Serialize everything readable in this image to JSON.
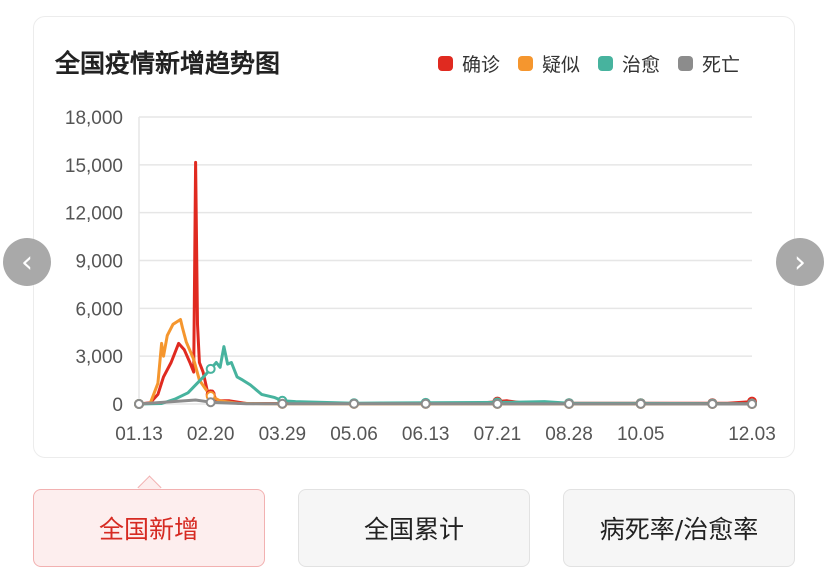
{
  "chart_data": {
    "type": "line",
    "title": "全国疫情新增趋势图",
    "legend_position": "top-right",
    "grid": true,
    "ylim": [
      0,
      18000
    ],
    "yticks": [
      "0",
      "3,000",
      "6,000",
      "9,000",
      "12,000",
      "15,000",
      "18,000"
    ],
    "xticks": [
      "01.13",
      "02.20",
      "03.29",
      "05.06",
      "06.13",
      "07.21",
      "08.28",
      "10.05",
      "12.03"
    ],
    "series": [
      {
        "name": "确诊",
        "color": "#e02a20",
        "points": [
          [
            "01.13",
            0
          ],
          [
            "01.19",
            80
          ],
          [
            "01.23",
            600
          ],
          [
            "01.26",
            1700
          ],
          [
            "01.30",
            2600
          ],
          [
            "02.03",
            3800
          ],
          [
            "02.06",
            3400
          ],
          [
            "02.09",
            2600
          ],
          [
            "02.11",
            2000
          ],
          [
            "02.12",
            15152
          ],
          [
            "02.13",
            5000
          ],
          [
            "02.14",
            2600
          ],
          [
            "02.16",
            2000
          ],
          [
            "02.19",
            400
          ],
          [
            "02.21",
            800
          ],
          [
            "02.23",
            200
          ],
          [
            "03.01",
            200
          ],
          [
            "03.10",
            30
          ],
          [
            "07.10",
            30
          ],
          [
            "07.26",
            200
          ],
          [
            "08.05",
            50
          ],
          [
            "11.20",
            50
          ],
          [
            "12.03",
            150
          ]
        ]
      },
      {
        "name": "疑似",
        "color": "#f5962e",
        "points": [
          [
            "01.13",
            0
          ],
          [
            "01.19",
            50
          ],
          [
            "01.23",
            1300
          ],
          [
            "01.25",
            3800
          ],
          [
            "01.26",
            3000
          ],
          [
            "01.28",
            4300
          ],
          [
            "01.31",
            5000
          ],
          [
            "02.04",
            5300
          ],
          [
            "02.05",
            4800
          ],
          [
            "02.07",
            3900
          ],
          [
            "02.11",
            2800
          ],
          [
            "02.14",
            1500
          ],
          [
            "02.17",
            1000
          ],
          [
            "02.20",
            500
          ],
          [
            "02.25",
            200
          ],
          [
            "03.05",
            50
          ],
          [
            "03.20",
            10
          ],
          [
            "12.03",
            0
          ]
        ]
      },
      {
        "name": "治愈",
        "color": "#47b39e",
        "points": [
          [
            "01.13",
            0
          ],
          [
            "01.25",
            30
          ],
          [
            "02.01",
            300
          ],
          [
            "02.08",
            700
          ],
          [
            "02.12",
            1200
          ],
          [
            "02.17",
            1800
          ],
          [
            "02.20",
            2200
          ],
          [
            "02.23",
            2600
          ],
          [
            "02.25",
            2300
          ],
          [
            "02.27",
            3600
          ],
          [
            "02.29",
            2500
          ],
          [
            "03.02",
            2600
          ],
          [
            "03.05",
            1700
          ],
          [
            "03.08",
            1500
          ],
          [
            "03.12",
            1200
          ],
          [
            "03.18",
            600
          ],
          [
            "03.25",
            400
          ],
          [
            "03.29",
            200
          ],
          [
            "04.05",
            150
          ],
          [
            "05.06",
            50
          ],
          [
            "07.25",
            100
          ],
          [
            "08.15",
            150
          ],
          [
            "08.28",
            50
          ],
          [
            "12.03",
            20
          ]
        ]
      },
      {
        "name": "死亡",
        "color": "#8c8c8c",
        "points": [
          [
            "01.13",
            0
          ],
          [
            "02.12",
            250
          ],
          [
            "02.20",
            110
          ],
          [
            "03.10",
            20
          ],
          [
            "12.03",
            0
          ]
        ]
      }
    ]
  },
  "buttons": [
    "全国新增",
    "全国累计",
    "病死率/治愈率"
  ],
  "nav": {
    "prev_icon": "chevron-left-icon",
    "next_icon": "chevron-right-icon"
  }
}
